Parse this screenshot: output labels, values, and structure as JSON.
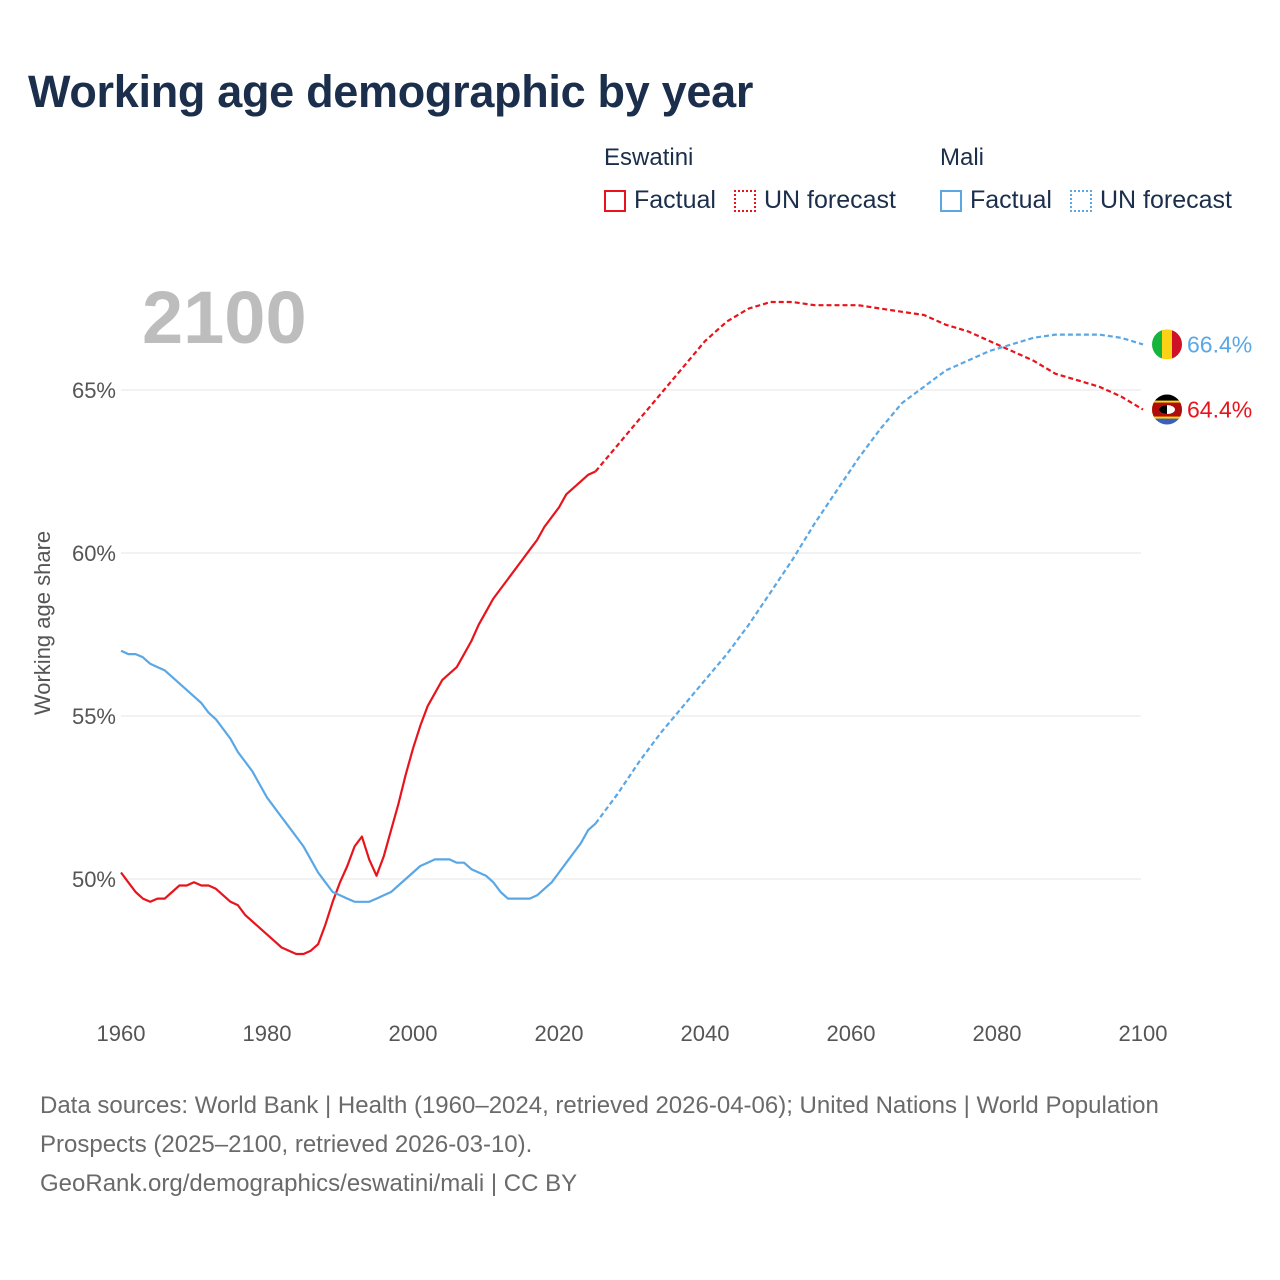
{
  "title": "Working age demographic by year",
  "legend": {
    "groups": [
      {
        "name": "Eswatini",
        "color": "#e8141c",
        "factual_label": "Factual",
        "forecast_label": "UN forecast"
      },
      {
        "name": "Mali",
        "color": "#5aa7e6",
        "factual_label": "Factual",
        "forecast_label": "UN forecast"
      }
    ]
  },
  "footer": {
    "sources": "Data sources: World Bank | Health (1960–2024, retrieved 2026-04-06); United Nations | World Population Prospects (2025–2100, retrieved 2026-03-10).",
    "url": "GeoRank.org/demographics/eswatini/mali | CC BY"
  },
  "chart_data": {
    "type": "line",
    "title": "Working age demographic by year",
    "year_label": "2100",
    "xlabel": "",
    "ylabel": "Working age share",
    "xlim": [
      1960,
      2100
    ],
    "ylim": [
      46.5,
      68.5
    ],
    "x_ticks": [
      1960,
      1980,
      2000,
      2020,
      2040,
      2060,
      2080,
      2100
    ],
    "y_ticks": [
      50,
      55,
      60,
      65
    ],
    "y_tick_labels": [
      "50%",
      "55%",
      "60%",
      "65%"
    ],
    "series": [
      {
        "name": "Eswatini",
        "color": "#e8141c",
        "end_label": "64.4%",
        "flag": "eswatini-flag-icon",
        "factual": {
          "x": [
            1960,
            1961,
            1962,
            1963,
            1964,
            1965,
            1966,
            1967,
            1968,
            1969,
            1970,
            1971,
            1972,
            1973,
            1974,
            1975,
            1976,
            1977,
            1978,
            1979,
            1980,
            1981,
            1982,
            1983,
            1984,
            1985,
            1986,
            1987,
            1988,
            1989,
            1990,
            1991,
            1992,
            1993,
            1994,
            1995,
            1996,
            1997,
            1998,
            1999,
            2000,
            2001,
            2002,
            2003,
            2004,
            2005,
            2006,
            2007,
            2008,
            2009,
            2010,
            2011,
            2012,
            2013,
            2014,
            2015,
            2016,
            2017,
            2018,
            2019,
            2020,
            2021,
            2022,
            2023,
            2024,
            2025
          ],
          "y": [
            50.2,
            49.9,
            49.6,
            49.4,
            49.3,
            49.4,
            49.4,
            49.6,
            49.8,
            49.8,
            49.9,
            49.8,
            49.8,
            49.7,
            49.5,
            49.3,
            49.2,
            48.9,
            48.7,
            48.5,
            48.3,
            48.1,
            47.9,
            47.8,
            47.7,
            47.7,
            47.8,
            48.0,
            48.6,
            49.3,
            49.9,
            50.4,
            51.0,
            51.3,
            50.6,
            50.1,
            50.7,
            51.5,
            52.3,
            53.2,
            54.0,
            54.7,
            55.3,
            55.7,
            56.1,
            56.3,
            56.5,
            56.9,
            57.3,
            57.8,
            58.2,
            58.6,
            58.9,
            59.2,
            59.5,
            59.8,
            60.1,
            60.4,
            60.8,
            61.1,
            61.4,
            61.8,
            62.0,
            62.2,
            62.4,
            62.5
          ]
        },
        "forecast": {
          "x": [
            2025,
            2028,
            2031,
            2034,
            2037,
            2040,
            2043,
            2046,
            2049,
            2052,
            2055,
            2058,
            2061,
            2064,
            2067,
            2070,
            2073,
            2076,
            2079,
            2082,
            2085,
            2088,
            2091,
            2094,
            2097,
            2100
          ],
          "y": [
            62.5,
            63.3,
            64.1,
            64.9,
            65.7,
            66.5,
            67.1,
            67.5,
            67.7,
            67.7,
            67.6,
            67.6,
            67.6,
            67.5,
            67.4,
            67.3,
            67.0,
            66.8,
            66.5,
            66.2,
            65.9,
            65.5,
            65.3,
            65.1,
            64.8,
            64.4
          ]
        }
      },
      {
        "name": "Mali",
        "color": "#5aa7e6",
        "end_label": "66.4%",
        "flag": "mali-flag-icon",
        "factual": {
          "x": [
            1960,
            1961,
            1962,
            1963,
            1964,
            1965,
            1966,
            1967,
            1968,
            1969,
            1970,
            1971,
            1972,
            1973,
            1974,
            1975,
            1976,
            1977,
            1978,
            1979,
            1980,
            1981,
            1982,
            1983,
            1984,
            1985,
            1986,
            1987,
            1988,
            1989,
            1990,
            1991,
            1992,
            1993,
            1994,
            1995,
            1996,
            1997,
            1998,
            1999,
            2000,
            2001,
            2002,
            2003,
            2004,
            2005,
            2006,
            2007,
            2008,
            2009,
            2010,
            2011,
            2012,
            2013,
            2014,
            2015,
            2016,
            2017,
            2018,
            2019,
            2020,
            2021,
            2022,
            2023,
            2024,
            2025
          ],
          "y": [
            57.0,
            56.9,
            56.9,
            56.8,
            56.6,
            56.5,
            56.4,
            56.2,
            56.0,
            55.8,
            55.6,
            55.4,
            55.1,
            54.9,
            54.6,
            54.3,
            53.9,
            53.6,
            53.3,
            52.9,
            52.5,
            52.2,
            51.9,
            51.6,
            51.3,
            51.0,
            50.6,
            50.2,
            49.9,
            49.6,
            49.5,
            49.4,
            49.3,
            49.3,
            49.3,
            49.4,
            49.5,
            49.6,
            49.8,
            50.0,
            50.2,
            50.4,
            50.5,
            50.6,
            50.6,
            50.6,
            50.5,
            50.5,
            50.3,
            50.2,
            50.1,
            49.9,
            49.6,
            49.4,
            49.4,
            49.4,
            49.4,
            49.5,
            49.7,
            49.9,
            50.2,
            50.5,
            50.8,
            51.1,
            51.5,
            51.7
          ]
        },
        "forecast": {
          "x": [
            2025,
            2028,
            2031,
            2034,
            2037,
            2040,
            2043,
            2046,
            2049,
            2052,
            2055,
            2058,
            2061,
            2064,
            2067,
            2070,
            2073,
            2076,
            2079,
            2082,
            2085,
            2088,
            2091,
            2094,
            2097,
            2100
          ],
          "y": [
            51.7,
            52.6,
            53.6,
            54.5,
            55.3,
            56.1,
            56.9,
            57.8,
            58.8,
            59.8,
            60.9,
            61.9,
            62.9,
            63.8,
            64.6,
            65.1,
            65.6,
            65.9,
            66.2,
            66.4,
            66.6,
            66.7,
            66.7,
            66.7,
            66.6,
            66.4
          ]
        }
      }
    ]
  }
}
